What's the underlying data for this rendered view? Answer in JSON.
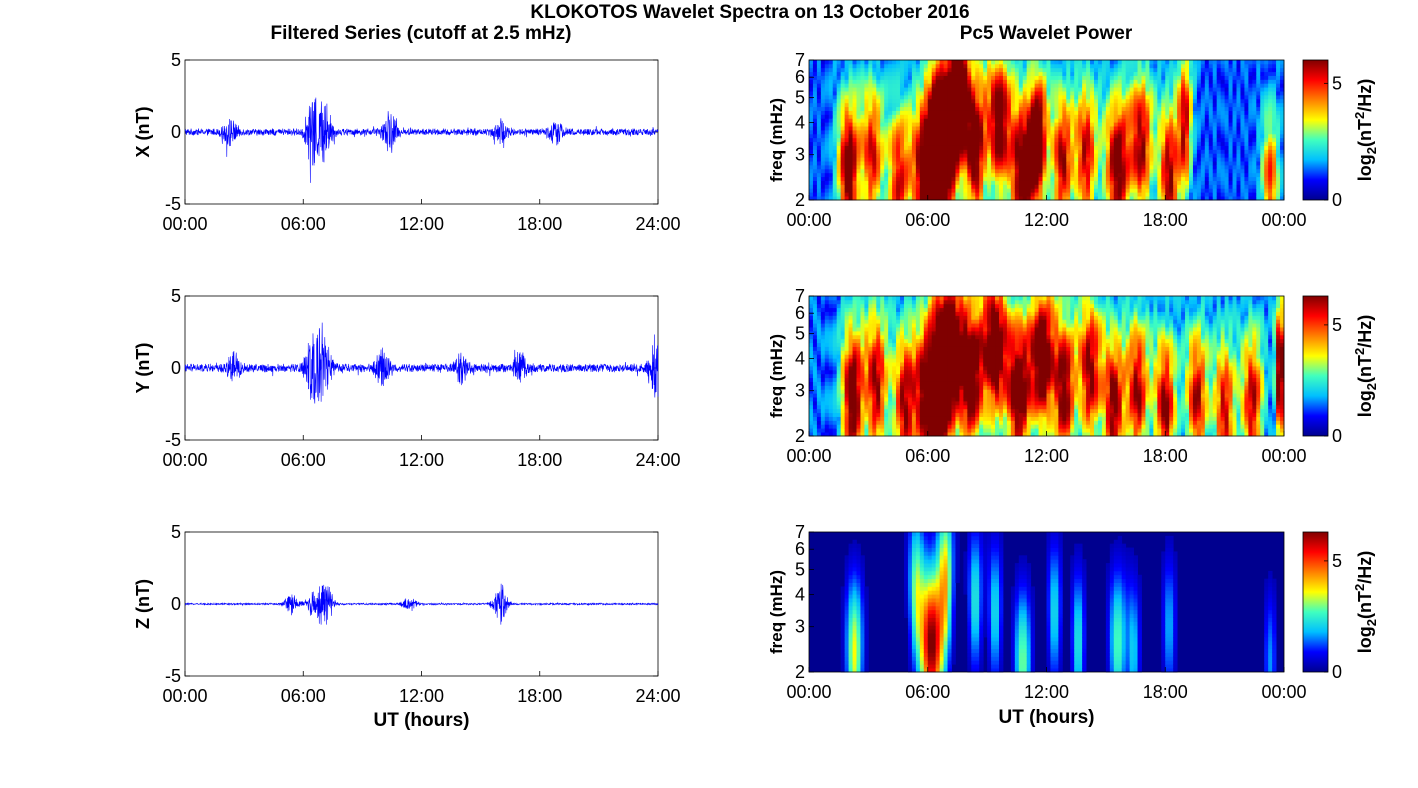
{
  "figure": {
    "title": "KLOKOTOS Wavelet Spectra on 13 October 2016",
    "left_title": "Filtered Series (cutoff at 2.5 mHz)",
    "right_title": "Pc5 Wavelet Power",
    "colormap": [
      "#00008f",
      "#0000ff",
      "#00bfff",
      "#40ffbf",
      "#ffff00",
      "#ff8000",
      "#ff0000",
      "#800000"
    ]
  },
  "chart_data": [
    {
      "type": "line",
      "name": "x-series",
      "ylabel": "X (nT)",
      "xlabel": "",
      "xticks": [
        "00:00",
        "06:00",
        "12:00",
        "18:00",
        "24:00"
      ],
      "yticks": [
        "5",
        "0",
        "-5"
      ],
      "xlim": [
        0,
        24
      ],
      "ylim": [
        -5,
        5
      ],
      "line_color": "#0000ff",
      "base_amplitude": 0.25,
      "activity": [
        {
          "t": 2.3,
          "amp": 0.9
        },
        {
          "t": 6.5,
          "amp": 2.8
        },
        {
          "t": 7.1,
          "amp": 2.0
        },
        {
          "t": 10.4,
          "amp": 1.3
        },
        {
          "t": 16.0,
          "amp": 0.8
        },
        {
          "t": 18.8,
          "amp": 0.8
        }
      ]
    },
    {
      "type": "heatmap",
      "name": "x-power",
      "ylabel": "freq (mHz)",
      "xlabel": "",
      "xticks": [
        "00:00",
        "06:00",
        "12:00",
        "18:00",
        "00:00"
      ],
      "yticks": [
        "7",
        "6",
        "5",
        "4",
        "3",
        "2"
      ],
      "xlim": [
        0,
        24
      ],
      "ylim": [
        2,
        7
      ],
      "yscale": "log",
      "colorbar_label_prefix": "log",
      "colorbar_label_sub": "2",
      "colorbar_label_mid": "(nT",
      "colorbar_label_sup": "2",
      "colorbar_label_suffix": "/Hz)",
      "colorbar_ticks": [
        "5",
        "0"
      ],
      "zlim": [
        0,
        6
      ],
      "background_power": 1.2,
      "bursts": [
        {
          "t": 2.0,
          "f": 2.6,
          "power": 5.6,
          "width": 0.5
        },
        {
          "t": 3.2,
          "f": 3.0,
          "power": 4.2,
          "width": 0.5
        },
        {
          "t": 4.5,
          "f": 2.4,
          "power": 4.0,
          "width": 0.5
        },
        {
          "t": 6.2,
          "f": 2.5,
          "power": 7.5,
          "width": 0.9
        },
        {
          "t": 6.8,
          "f": 3.8,
          "power": 6.0,
          "width": 0.6
        },
        {
          "t": 7.6,
          "f": 5.5,
          "power": 4.5,
          "width": 0.4
        },
        {
          "t": 8.4,
          "f": 3.2,
          "power": 5.5,
          "width": 0.5
        },
        {
          "t": 9.6,
          "f": 4.0,
          "power": 5.2,
          "width": 0.5
        },
        {
          "t": 10.8,
          "f": 2.6,
          "power": 5.8,
          "width": 0.6
        },
        {
          "t": 11.6,
          "f": 3.4,
          "power": 5.0,
          "width": 0.4
        },
        {
          "t": 12.8,
          "f": 2.8,
          "power": 4.6,
          "width": 0.5
        },
        {
          "t": 14.0,
          "f": 3.0,
          "power": 4.4,
          "width": 0.5
        },
        {
          "t": 15.6,
          "f": 2.7,
          "power": 5.4,
          "width": 0.6
        },
        {
          "t": 16.8,
          "f": 3.3,
          "power": 4.6,
          "width": 0.5
        },
        {
          "t": 18.2,
          "f": 2.5,
          "power": 4.8,
          "width": 0.5
        },
        {
          "t": 19.0,
          "f": 4.0,
          "power": 4.2,
          "width": 0.3
        },
        {
          "t": 23.3,
          "f": 2.3,
          "power": 3.8,
          "width": 0.4
        }
      ]
    },
    {
      "type": "line",
      "name": "y-series",
      "ylabel": "Y (nT)",
      "xlabel": "",
      "xticks": [
        "00:00",
        "06:00",
        "12:00",
        "18:00",
        "24:00"
      ],
      "yticks": [
        "5",
        "0",
        "-5"
      ],
      "xlim": [
        0,
        24
      ],
      "ylim": [
        -5,
        5
      ],
      "line_color": "#0000ff",
      "base_amplitude": 0.3,
      "activity": [
        {
          "t": 2.5,
          "amp": 0.9
        },
        {
          "t": 6.4,
          "amp": 2.0
        },
        {
          "t": 7.0,
          "amp": 2.8
        },
        {
          "t": 10.0,
          "amp": 1.2
        },
        {
          "t": 14.0,
          "amp": 1.0
        },
        {
          "t": 17.0,
          "amp": 1.0
        },
        {
          "t": 23.9,
          "amp": 2.5
        }
      ]
    },
    {
      "type": "heatmap",
      "name": "y-power",
      "ylabel": "freq (mHz)",
      "xlabel": "",
      "xticks": [
        "00:00",
        "06:00",
        "12:00",
        "18:00",
        "00:00"
      ],
      "yticks": [
        "7",
        "6",
        "5",
        "4",
        "3",
        "2"
      ],
      "xlim": [
        0,
        24
      ],
      "ylim": [
        2,
        7
      ],
      "yscale": "log",
      "colorbar_label_prefix": "log",
      "colorbar_label_sub": "2",
      "colorbar_label_mid": "(nT",
      "colorbar_label_sup": "2",
      "colorbar_label_suffix": "/Hz)",
      "colorbar_ticks": [
        "5",
        "0"
      ],
      "zlim": [
        0,
        6.3
      ],
      "background_power": 1.4,
      "bursts": [
        {
          "t": 2.2,
          "f": 2.8,
          "power": 5.8,
          "width": 0.5
        },
        {
          "t": 3.4,
          "f": 3.2,
          "power": 4.8,
          "width": 0.5
        },
        {
          "t": 4.8,
          "f": 2.6,
          "power": 4.4,
          "width": 0.5
        },
        {
          "t": 6.2,
          "f": 2.8,
          "power": 7.0,
          "width": 0.8
        },
        {
          "t": 7.0,
          "f": 4.2,
          "power": 6.2,
          "width": 0.6
        },
        {
          "t": 8.2,
          "f": 3.4,
          "power": 5.8,
          "width": 0.6
        },
        {
          "t": 9.4,
          "f": 4.4,
          "power": 5.6,
          "width": 0.5
        },
        {
          "t": 10.6,
          "f": 3.0,
          "power": 6.0,
          "width": 0.6
        },
        {
          "t": 11.8,
          "f": 4.0,
          "power": 5.8,
          "width": 0.5
        },
        {
          "t": 12.9,
          "f": 3.0,
          "power": 5.4,
          "width": 0.5
        },
        {
          "t": 14.2,
          "f": 3.6,
          "power": 5.0,
          "width": 0.5
        },
        {
          "t": 15.4,
          "f": 2.6,
          "power": 5.2,
          "width": 0.5
        },
        {
          "t": 16.6,
          "f": 3.0,
          "power": 4.8,
          "width": 0.5
        },
        {
          "t": 18.0,
          "f": 2.6,
          "power": 5.0,
          "width": 0.5
        },
        {
          "t": 19.6,
          "f": 2.8,
          "power": 4.6,
          "width": 0.5
        },
        {
          "t": 21.0,
          "f": 2.5,
          "power": 4.4,
          "width": 0.5
        },
        {
          "t": 22.4,
          "f": 2.7,
          "power": 4.6,
          "width": 0.5
        },
        {
          "t": 23.8,
          "f": 3.5,
          "power": 6.2,
          "width": 0.2
        }
      ]
    },
    {
      "type": "line",
      "name": "z-series",
      "ylabel": "Z (nT)",
      "xlabel": "UT (hours)",
      "xticks": [
        "00:00",
        "06:00",
        "12:00",
        "18:00",
        "24:00"
      ],
      "yticks": [
        "5",
        "0",
        "-5"
      ],
      "xlim": [
        0,
        24
      ],
      "ylim": [
        -5,
        5
      ],
      "line_color": "#0000ff",
      "base_amplitude": 0.06,
      "activity": [
        {
          "t": 5.4,
          "amp": 0.8
        },
        {
          "t": 6.5,
          "amp": 0.9
        },
        {
          "t": 7.1,
          "amp": 1.9
        },
        {
          "t": 11.4,
          "amp": 0.5
        },
        {
          "t": 16.0,
          "amp": 1.5
        }
      ]
    },
    {
      "type": "heatmap",
      "name": "z-power",
      "ylabel": "freq (mHz)",
      "xlabel": "UT (hours)",
      "xticks": [
        "00:00",
        "06:00",
        "12:00",
        "18:00",
        "00:00"
      ],
      "yticks": [
        "7",
        "6",
        "5",
        "4",
        "3",
        "2"
      ],
      "xlim": [
        0,
        24
      ],
      "ylim": [
        2,
        7
      ],
      "yscale": "log",
      "colorbar_label_prefix": "log",
      "colorbar_label_sub": "2",
      "colorbar_label_mid": "(nT",
      "colorbar_label_sup": "2",
      "colorbar_label_suffix": "/Hz)",
      "colorbar_ticks": [
        "5",
        "0"
      ],
      "zlim": [
        0,
        6.3
      ],
      "background_power": 0.0,
      "bursts": [
        {
          "t": 2.3,
          "f": 2.4,
          "power": 3.6,
          "width": 0.4
        },
        {
          "t": 5.4,
          "f": 4.5,
          "power": 2.4,
          "width": 0.3
        },
        {
          "t": 6.2,
          "f": 2.6,
          "power": 6.5,
          "width": 0.6
        },
        {
          "t": 6.9,
          "f": 5.0,
          "power": 3.2,
          "width": 0.3
        },
        {
          "t": 8.4,
          "f": 3.8,
          "power": 2.4,
          "width": 0.3
        },
        {
          "t": 9.4,
          "f": 3.4,
          "power": 2.2,
          "width": 0.3
        },
        {
          "t": 10.8,
          "f": 2.2,
          "power": 3.0,
          "width": 0.4
        },
        {
          "t": 12.4,
          "f": 3.4,
          "power": 2.2,
          "width": 0.3
        },
        {
          "t": 13.6,
          "f": 2.6,
          "power": 2.4,
          "width": 0.3
        },
        {
          "t": 15.6,
          "f": 2.6,
          "power": 2.8,
          "width": 0.4
        },
        {
          "t": 16.4,
          "f": 2.4,
          "power": 2.0,
          "width": 0.3
        },
        {
          "t": 18.2,
          "f": 3.0,
          "power": 1.8,
          "width": 0.3
        },
        {
          "t": 23.3,
          "f": 2.2,
          "power": 1.6,
          "width": 0.3
        }
      ]
    }
  ]
}
